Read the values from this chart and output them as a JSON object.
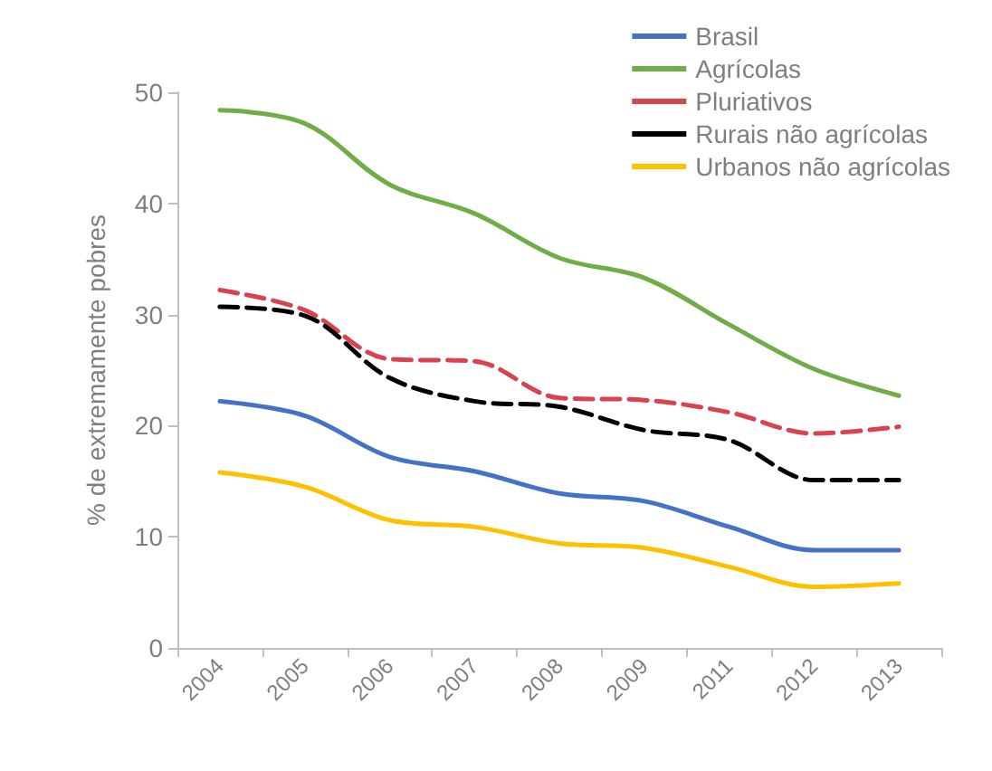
{
  "chart_data": {
    "type": "line",
    "ylabel": "% de extremamente pobres",
    "categories": [
      "2004",
      "2005",
      "2006",
      "2007",
      "2008",
      "2009",
      "2011",
      "2012",
      "2013"
    ],
    "series": [
      {
        "name": "Brasil",
        "color": "#4472c4",
        "values": [
          22.2,
          20.9,
          17.2,
          15.9,
          13.9,
          13.2,
          10.9,
          8.8,
          8.8
        ]
      },
      {
        "name": "Agrícolas",
        "color": "#70ad47",
        "values": [
          48.4,
          47.2,
          41.7,
          39.1,
          35.1,
          33.3,
          29.1,
          25.1,
          22.7
        ]
      },
      {
        "name": "Pluriativos",
        "color": "#d9434f",
        "line_style": "dashed",
        "values": [
          32.2,
          30.4,
          26.0,
          25.8,
          22.5,
          22.3,
          21.2,
          19.3,
          19.9
        ]
      },
      {
        "name": "Rurais não agrícolas",
        "color": "#000000",
        "line_style": "dashed",
        "values": [
          30.7,
          29.9,
          24.3,
          22.2,
          21.7,
          19.6,
          18.7,
          15.1,
          15.1
        ]
      },
      {
        "name": "Urbanos não agrícolas",
        "color": "#ffc000",
        "values": [
          15.8,
          14.5,
          11.5,
          10.9,
          9.4,
          9.0,
          7.3,
          5.5,
          5.8
        ]
      }
    ],
    "ylim": [
      0,
      50
    ],
    "yticks": [
      0,
      10,
      20,
      30,
      40,
      50
    ],
    "grid": false,
    "legend": "top right",
    "marker": "none",
    "line_style": "solid"
  }
}
